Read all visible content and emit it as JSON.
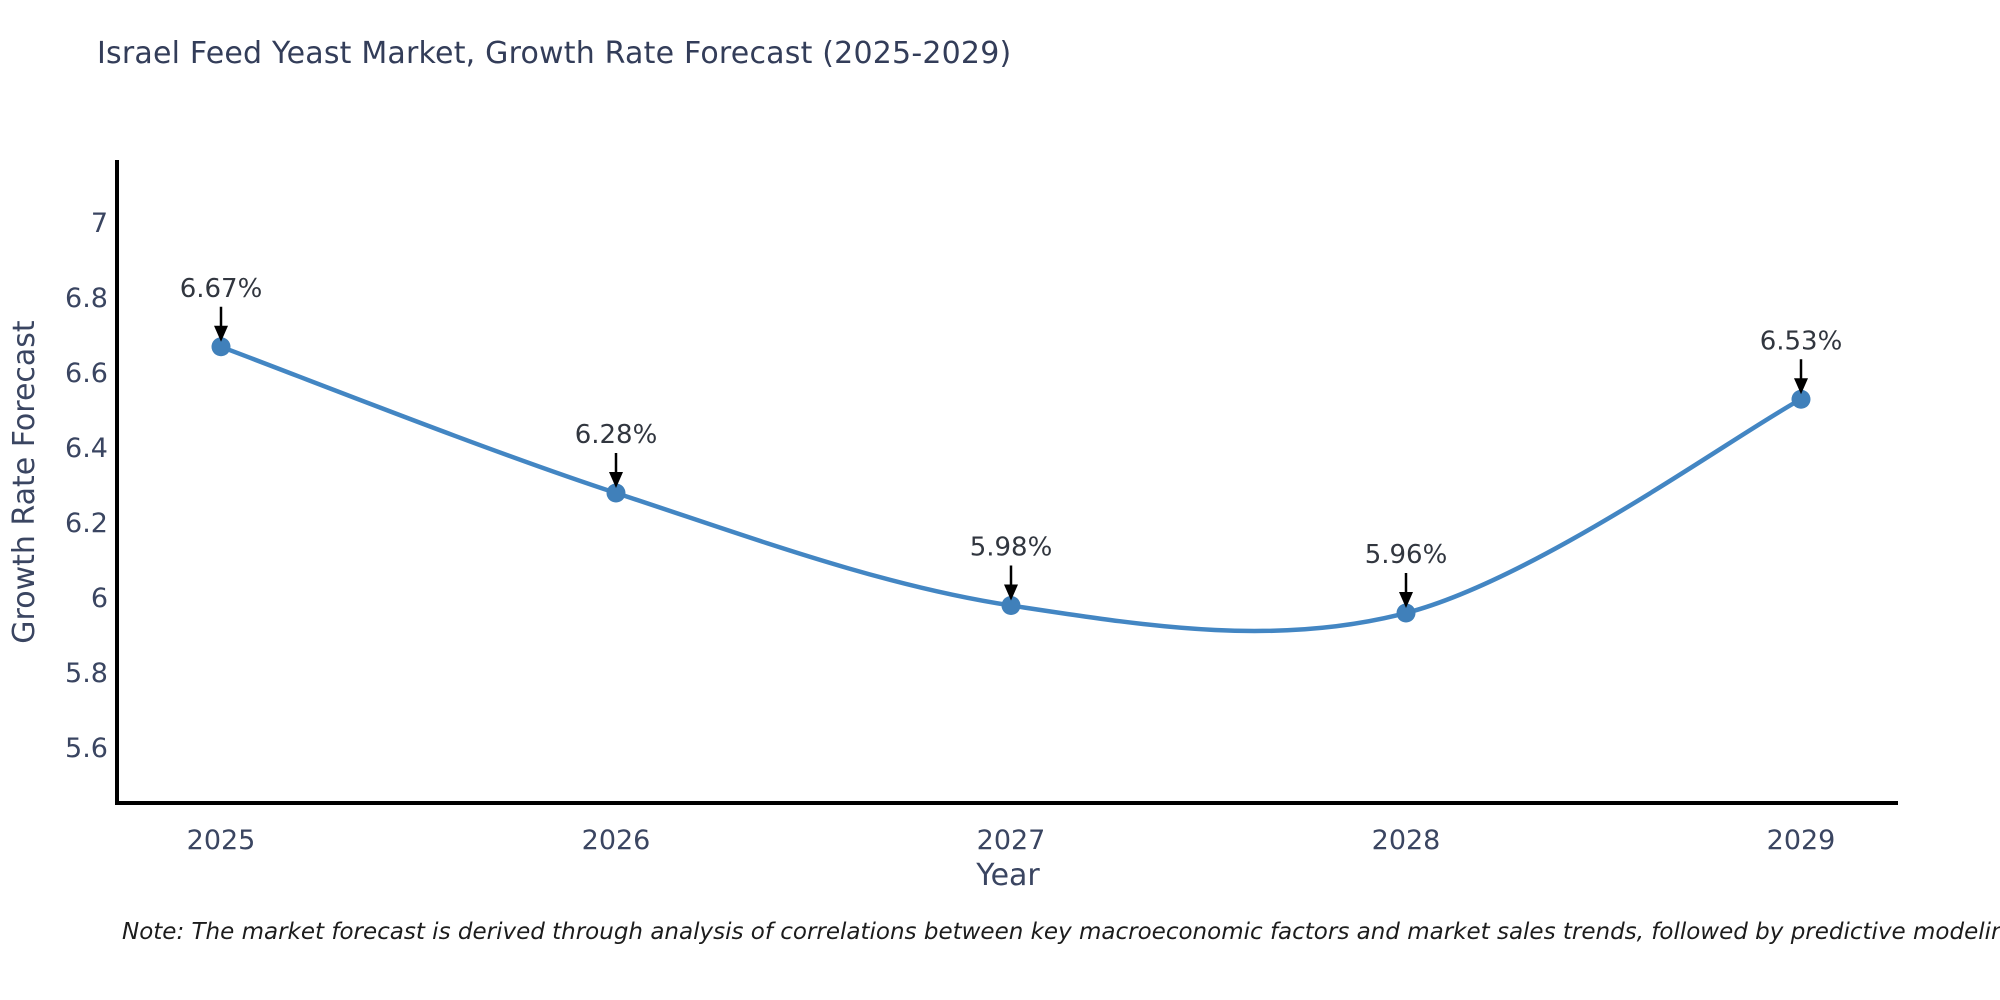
{
  "chart_data": {
    "type": "line",
    "title": "Israel Feed Yeast Market, Growth Rate Forecast (2025-2029)",
    "xlabel": "Year",
    "ylabel": "Growth Rate Forecast",
    "x": [
      2025,
      2026,
      2027,
      2028,
      2029
    ],
    "series": [
      {
        "name": "Growth Rate Forecast",
        "values": [
          6.67,
          6.28,
          5.98,
          5.96,
          6.53
        ]
      }
    ],
    "point_labels": [
      "6.67%",
      "6.28%",
      "5.98%",
      "5.96%",
      "6.53%"
    ],
    "y_ticks": [
      7,
      6.8,
      6.6,
      6.4,
      6.2,
      6,
      5.8,
      5.6
    ],
    "ylim": [
      5.45,
      7.17
    ],
    "grid": false,
    "legend": "none",
    "line_shape": "spline",
    "colors": {
      "line": "#4386c3",
      "marker": "#4080ba",
      "axis": "#000000",
      "annotation_arrow": "#000000",
      "tick_text": "#3a4561",
      "title_text": "#333d59"
    },
    "note": "Note: The market forecast is derived through analysis of correlations between key macroeconomic factors and market sales trends, followed by predictive modeling to project future sales trends."
  }
}
